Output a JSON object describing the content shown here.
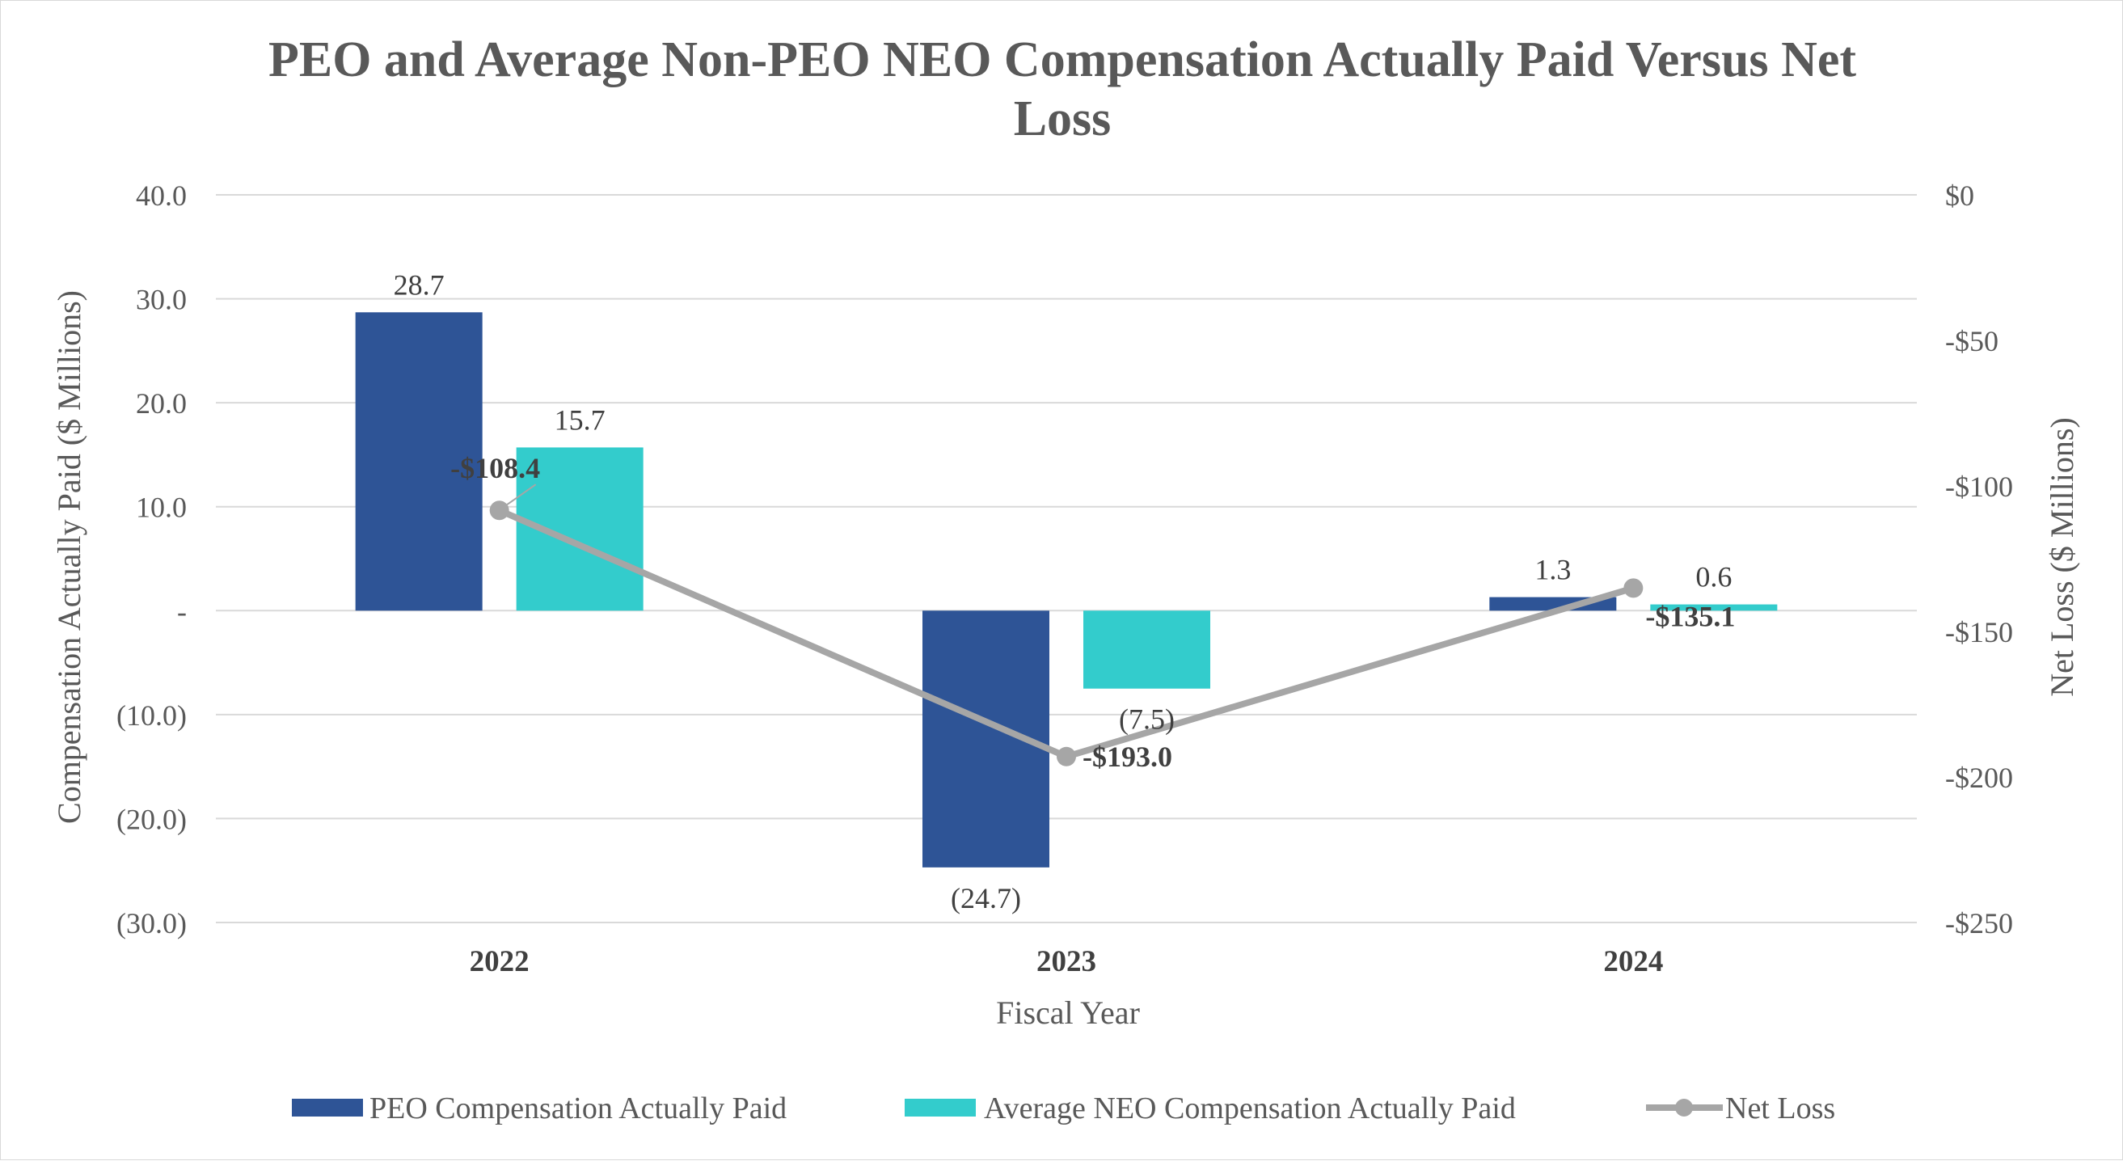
{
  "chart_data": {
    "type": "bar",
    "title": "PEO and Average Non-PEO NEO Compensation Actually Paid Versus Net Loss",
    "title_lines": [
      "PEO and Average Non-PEO NEO Compensation Actually Paid Versus Net",
      "Loss"
    ],
    "xlabel": "Fiscal Year",
    "ylabel": "Compensation Actually Paid ($ Millions)",
    "y2label": "Net Loss ($ Millions)",
    "categories": [
      "2022",
      "2023",
      "2024"
    ],
    "ylim": [
      -30,
      40
    ],
    "y_ticks": [
      40,
      30,
      20,
      10,
      0,
      -10,
      -20,
      -30
    ],
    "y_tick_labels": [
      "40.0",
      "30.0",
      "20.0",
      "10.0",
      "-",
      "(10.0)",
      "(20.0)",
      "(30.0)"
    ],
    "y2lim": [
      -250,
      0
    ],
    "y2_ticks": [
      0,
      -50,
      -100,
      -150,
      -200,
      -250
    ],
    "y2_tick_labels": [
      "$0",
      "-$50",
      "-$100",
      "-$150",
      "-$200",
      "-$250"
    ],
    "grid": true,
    "legend_position": "bottom",
    "series": [
      {
        "name": "PEO Compensation Actually Paid",
        "type": "bar",
        "axis": "left",
        "color": "#2E5496",
        "values": [
          28.7,
          -24.7,
          1.3
        ],
        "labels": [
          "28.7",
          "(24.7)",
          "1.3"
        ]
      },
      {
        "name": "Average NEO Compensation Actually Paid",
        "type": "bar",
        "axis": "left",
        "color": "#33CCCC",
        "values": [
          15.7,
          -7.5,
          0.6
        ],
        "labels": [
          "15.7",
          "(7.5)",
          "0.6"
        ]
      },
      {
        "name": "Net Loss",
        "type": "line",
        "axis": "right",
        "color": "#A6A6A6",
        "values": [
          -108.4,
          -193.0,
          -135.1
        ],
        "labels": [
          "-$108.4",
          "-$193.0",
          "-$135.1"
        ]
      }
    ]
  }
}
